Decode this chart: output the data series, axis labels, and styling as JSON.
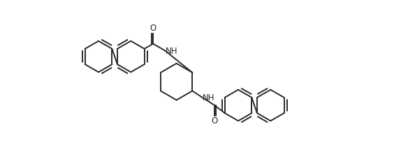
{
  "background_color": "#ffffff",
  "line_color": "#2a2a2a",
  "line_width": 1.4,
  "figure_width": 5.84,
  "figure_height": 2.18,
  "dpi": 100,
  "xlim": [
    -0.3,
    11.8
  ],
  "ylim": [
    -2.8,
    3.8
  ]
}
